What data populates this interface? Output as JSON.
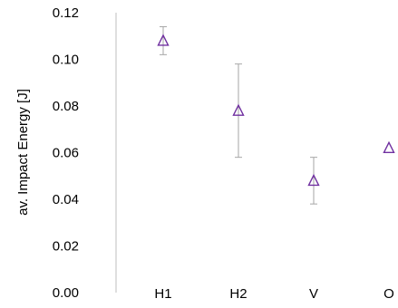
{
  "chart_data": {
    "type": "scatter",
    "title": "",
    "xlabel": "",
    "ylabel": "av. Impact Energy [J]",
    "categories": [
      "H1",
      "H2",
      "V",
      "O"
    ],
    "series": [
      {
        "values": [
          0.108,
          0.078,
          0.048,
          0.062
        ],
        "error_low": [
          0.102,
          0.058,
          0.038,
          0.062
        ],
        "error_high": [
          0.114,
          0.098,
          0.058,
          0.062
        ],
        "marker": "triangle",
        "color": "#7030a0"
      }
    ],
    "ylim": [
      0,
      0.12
    ],
    "yticks": [
      "0.00",
      "0.02",
      "0.04",
      "0.06",
      "0.08",
      "0.10",
      "0.12"
    ],
    "ytick_values": [
      0,
      0.02,
      0.04,
      0.06,
      0.08,
      0.1,
      0.12
    ],
    "grid": false,
    "legend": "none",
    "axis_color": "#bfbfbf",
    "error_bar_color": "#a6a6a6"
  }
}
